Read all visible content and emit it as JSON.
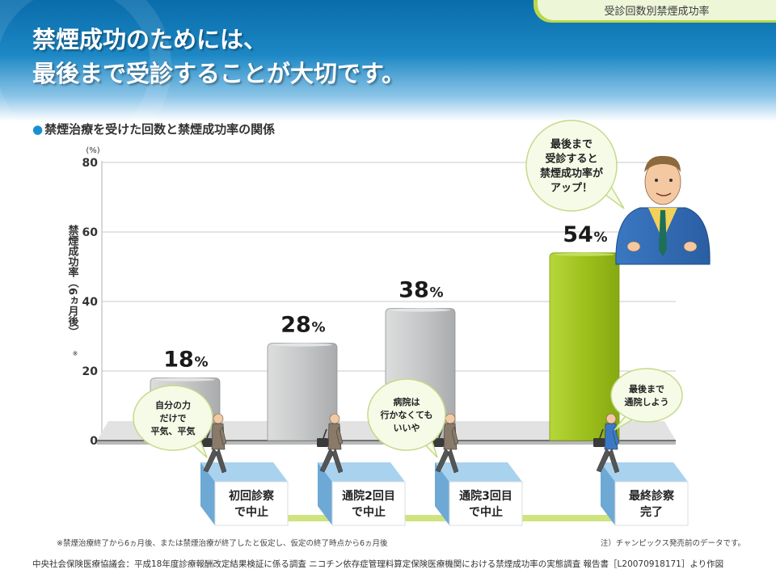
{
  "header": {
    "tab_label": "受診回数別禁煙成功率",
    "title_line1": "禁煙成功のためには、",
    "title_line2": "最後まで受診することが大切です。"
  },
  "subtitle": "禁煙治療を受けた回数と禁煙成功率の関係",
  "chart_data": {
    "type": "bar",
    "categories": [
      "初回診察で中止",
      "通院2回目で中止",
      "通院3回目で中止",
      "最終診察完了"
    ],
    "category_lines": [
      [
        "初回診察",
        "で中止"
      ],
      [
        "通院2回目",
        "で中止"
      ],
      [
        "通院3回目",
        "で中止"
      ],
      [
        "最終診察",
        "完了"
      ]
    ],
    "values": [
      18,
      28,
      38,
      54
    ],
    "value_labels": [
      "18",
      "28",
      "38",
      "54"
    ],
    "value_unit": "%",
    "ylim": [
      0,
      80
    ],
    "yticks": [
      0,
      20,
      40,
      60,
      80
    ],
    "unit_label": "(%)",
    "ylabel": "禁煙成功率（6ヵ月後）",
    "ylabel_mark": "※",
    "grid": true,
    "colors": {
      "gray_bar": "#c4c5c6",
      "highlight_bar": "#9ec11c",
      "bar_edge": "#8f9193"
    },
    "highlight_index": 3
  },
  "callouts": {
    "doctor": [
      "最後まで",
      "受診すると",
      "禁煙成功率が",
      "アップ！"
    ],
    "patient1": [
      "自分の力",
      "だけで",
      "平気、平気"
    ],
    "patient3": [
      "病院は",
      "行かなくても",
      "いいや"
    ],
    "patient4": [
      "最後まで",
      "通院しよう"
    ]
  },
  "notes": {
    "left": "※禁煙治療終了から6ヵ月後、または禁煙治療が終了したと仮定し、仮定の終了時点から6ヵ月後",
    "right": "注）チャンピックス発売前のデータです。"
  },
  "footer": "中央社会保険医療協議会：平成18年度診療報酬改定結果検証に係る調査 ニコチン依存症管理料算定保険医療機関における禁煙成功率の実態調査 報告書［L20070918171］より作図",
  "colors": {
    "header_blue": "#0a6cab",
    "accent_green": "#b9d84a",
    "bullet_blue": "#1a8fd0"
  },
  "icons": [
    "doctor-figure",
    "walking-man-icon",
    "briefcase-icon",
    "speech-bubble"
  ]
}
